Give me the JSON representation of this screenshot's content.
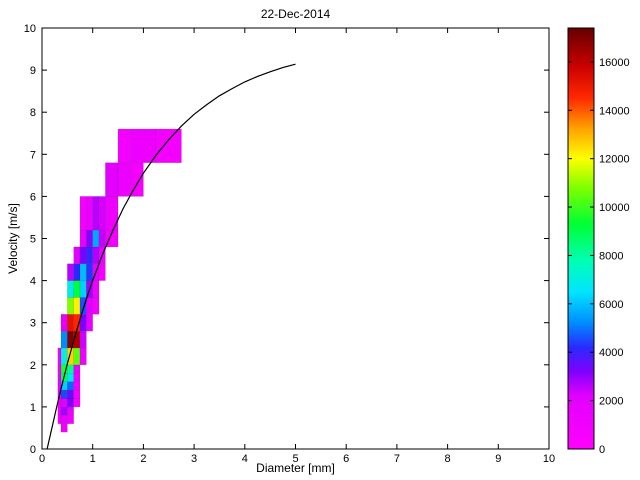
{
  "figure": {
    "title": "22-Dec-2014",
    "xlabel": "Diameter [mm]",
    "ylabel": "Velocity [m/s]"
  },
  "chart_data": {
    "type": "heatmap",
    "title": "22-Dec-2014",
    "xlabel": "Diameter [mm]",
    "ylabel": "Velocity [m/s]",
    "xlim": [
      0,
      10
    ],
    "ylim": [
      0,
      10
    ],
    "xticks": [
      0,
      1,
      2,
      3,
      4,
      5,
      6,
      7,
      8,
      9,
      10
    ],
    "yticks": [
      0,
      1,
      2,
      3,
      4,
      5,
      6,
      7,
      8,
      9,
      10
    ],
    "grid": false,
    "legend_position": "none",
    "colorbar": {
      "min": 0,
      "max": 17400,
      "ticks": [
        0,
        2000,
        4000,
        6000,
        8000,
        10000,
        12000,
        14000,
        16000
      ],
      "position": "right"
    },
    "colormap": [
      [
        0,
        "#ff00ff"
      ],
      [
        2200,
        "#e100ff"
      ],
      [
        3200,
        "#7f00ff"
      ],
      [
        4200,
        "#2a2aff"
      ],
      [
        5200,
        "#008cff"
      ],
      [
        6500,
        "#00e5ff"
      ],
      [
        7800,
        "#00ffb2"
      ],
      [
        9300,
        "#00ff33"
      ],
      [
        10800,
        "#7fff00"
      ],
      [
        12000,
        "#ffff00"
      ],
      [
        13200,
        "#ffa500"
      ],
      [
        14500,
        "#ff2a00"
      ],
      [
        15800,
        "#cc0000"
      ],
      [
        17400,
        "#660000"
      ]
    ],
    "cells_format": [
      "d_min_mm",
      "d_max_mm",
      "v_min_ms",
      "v_max_ms",
      "count"
    ],
    "cells": [
      [
        0.3125,
        0.375,
        0.6,
        1.0,
        700
      ],
      [
        0.3125,
        0.375,
        1.0,
        1.4,
        1000
      ],
      [
        0.3125,
        0.375,
        1.4,
        1.8,
        1300
      ],
      [
        0.3125,
        0.375,
        1.8,
        2.0,
        900
      ],
      [
        0.3125,
        0.375,
        2.0,
        2.4,
        700
      ],
      [
        0.375,
        0.5,
        0.4,
        0.6,
        1000
      ],
      [
        0.375,
        0.5,
        0.6,
        0.8,
        1600
      ],
      [
        0.375,
        0.5,
        0.8,
        1.0,
        2800
      ],
      [
        0.375,
        0.5,
        1.0,
        1.2,
        2100
      ],
      [
        0.375,
        0.5,
        1.2,
        1.4,
        4500
      ],
      [
        0.375,
        0.5,
        1.4,
        1.6,
        6200
      ],
      [
        0.375,
        0.5,
        1.6,
        1.8,
        8800
      ],
      [
        0.375,
        0.5,
        1.8,
        2.0,
        9600
      ],
      [
        0.375,
        0.5,
        2.0,
        2.4,
        7000
      ],
      [
        0.375,
        0.5,
        2.4,
        2.8,
        5200
      ],
      [
        0.375,
        0.5,
        2.8,
        3.2,
        1800
      ],
      [
        0.5,
        0.625,
        0.6,
        0.8,
        800
      ],
      [
        0.5,
        0.625,
        0.8,
        1.0,
        1600
      ],
      [
        0.5,
        0.625,
        1.0,
        1.2,
        3200
      ],
      [
        0.5,
        0.625,
        1.2,
        1.4,
        3400
      ],
      [
        0.5,
        0.625,
        1.4,
        1.6,
        4800
      ],
      [
        0.5,
        0.625,
        1.6,
        1.8,
        6600
      ],
      [
        0.5,
        0.625,
        1.8,
        2.0,
        8200
      ],
      [
        0.5,
        0.625,
        2.0,
        2.4,
        12600
      ],
      [
        0.5,
        0.625,
        2.4,
        2.8,
        17000
      ],
      [
        0.5,
        0.625,
        2.8,
        3.2,
        15200
      ],
      [
        0.5,
        0.625,
        3.2,
        3.6,
        10800
      ],
      [
        0.5,
        0.625,
        3.6,
        4.0,
        6800
      ],
      [
        0.5,
        0.625,
        4.0,
        4.4,
        2600
      ],
      [
        0.625,
        0.75,
        1.0,
        1.2,
        600
      ],
      [
        0.625,
        0.75,
        1.2,
        1.4,
        900
      ],
      [
        0.625,
        0.75,
        1.4,
        1.6,
        1200
      ],
      [
        0.625,
        0.75,
        1.6,
        1.8,
        1500
      ],
      [
        0.625,
        0.75,
        1.8,
        2.0,
        1900
      ],
      [
        0.625,
        0.75,
        2.0,
        2.4,
        10400
      ],
      [
        0.625,
        0.75,
        2.4,
        2.8,
        16400
      ],
      [
        0.625,
        0.75,
        2.8,
        3.2,
        14600
      ],
      [
        0.625,
        0.75,
        3.2,
        3.6,
        12200
      ],
      [
        0.625,
        0.75,
        3.6,
        4.0,
        9200
      ],
      [
        0.625,
        0.75,
        4.0,
        4.4,
        4200
      ],
      [
        0.625,
        0.75,
        4.4,
        4.8,
        2000
      ],
      [
        0.75,
        0.875,
        2.0,
        2.4,
        1400
      ],
      [
        0.75,
        0.875,
        2.4,
        2.8,
        2400
      ],
      [
        0.75,
        0.875,
        2.8,
        3.2,
        3200
      ],
      [
        0.75,
        0.875,
        3.2,
        3.6,
        4600
      ],
      [
        0.75,
        0.875,
        3.6,
        4.0,
        6200
      ],
      [
        0.75,
        0.875,
        4.0,
        4.4,
        5900
      ],
      [
        0.75,
        0.875,
        4.4,
        4.8,
        3300
      ],
      [
        0.75,
        0.875,
        4.8,
        5.2,
        1700
      ],
      [
        0.75,
        0.875,
        5.2,
        6.0,
        900
      ],
      [
        0.875,
        1.0,
        2.8,
        3.2,
        1600
      ],
      [
        0.875,
        1.0,
        3.2,
        3.6,
        2000
      ],
      [
        0.875,
        1.0,
        3.6,
        4.0,
        2900
      ],
      [
        0.875,
        1.0,
        4.0,
        4.4,
        4300
      ],
      [
        0.875,
        1.0,
        4.4,
        4.8,
        4100
      ],
      [
        0.875,
        1.0,
        4.8,
        5.2,
        3100
      ],
      [
        0.875,
        1.0,
        5.2,
        6.0,
        1500
      ],
      [
        1.0,
        1.125,
        3.2,
        3.6,
        900
      ],
      [
        1.0,
        1.125,
        3.6,
        4.0,
        1100
      ],
      [
        1.0,
        1.125,
        4.0,
        4.4,
        1900
      ],
      [
        1.0,
        1.125,
        4.4,
        4.8,
        2700
      ],
      [
        1.0,
        1.125,
        4.8,
        5.2,
        5600
      ],
      [
        1.0,
        1.125,
        5.2,
        6.0,
        2600
      ],
      [
        1.125,
        1.25,
        4.0,
        4.4,
        800
      ],
      [
        1.125,
        1.25,
        4.4,
        4.8,
        1300
      ],
      [
        1.125,
        1.25,
        4.8,
        5.2,
        2500
      ],
      [
        1.125,
        1.25,
        5.2,
        6.0,
        2300
      ],
      [
        1.25,
        1.5,
        4.8,
        5.2,
        1000
      ],
      [
        1.25,
        1.5,
        5.2,
        6.0,
        1300
      ],
      [
        1.25,
        1.5,
        6.0,
        6.8,
        2100
      ],
      [
        1.5,
        1.75,
        6.0,
        6.8,
        1400
      ],
      [
        1.5,
        1.75,
        6.8,
        7.6,
        800
      ],
      [
        1.75,
        2.0,
        6.0,
        6.8,
        700
      ],
      [
        1.75,
        2.25,
        6.8,
        7.6,
        1300
      ],
      [
        2.25,
        2.75,
        6.8,
        7.6,
        800
      ]
    ],
    "fit_curve": {
      "description": "terminal velocity reference curve",
      "color": "#000000",
      "points": [
        [
          0.1,
          0.0
        ],
        [
          0.2,
          0.52
        ],
        [
          0.3,
          1.05
        ],
        [
          0.4,
          1.55
        ],
        [
          0.5,
          2.02
        ],
        [
          0.6,
          2.46
        ],
        [
          0.7,
          2.88
        ],
        [
          0.8,
          3.28
        ],
        [
          0.9,
          3.65
        ],
        [
          1.0,
          4.0
        ],
        [
          1.2,
          4.64
        ],
        [
          1.4,
          5.2
        ],
        [
          1.6,
          5.71
        ],
        [
          1.8,
          6.15
        ],
        [
          2.0,
          6.55
        ],
        [
          2.25,
          6.98
        ],
        [
          2.5,
          7.35
        ],
        [
          2.75,
          7.67
        ],
        [
          3.0,
          7.95
        ],
        [
          3.25,
          8.18
        ],
        [
          3.5,
          8.39
        ],
        [
          3.75,
          8.56
        ],
        [
          4.0,
          8.72
        ],
        [
          4.25,
          8.85
        ],
        [
          4.5,
          8.96
        ],
        [
          4.75,
          9.06
        ],
        [
          5.0,
          9.14
        ]
      ]
    }
  }
}
